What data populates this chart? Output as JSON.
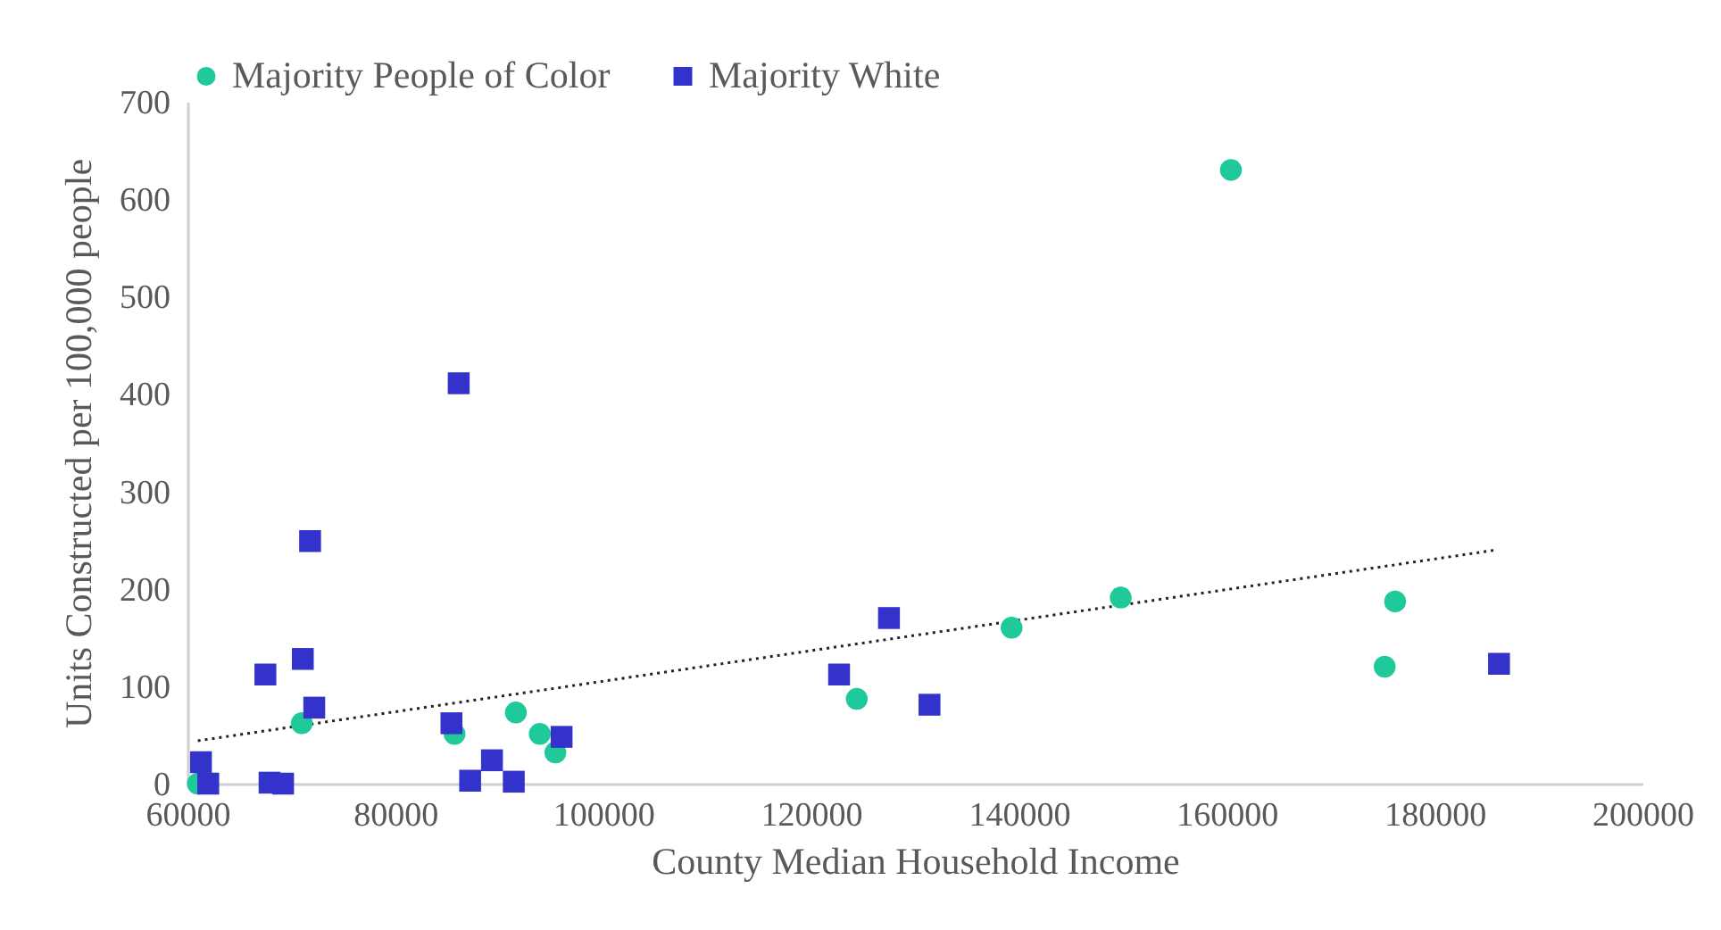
{
  "chart_data": {
    "type": "scatter",
    "xlabel": "County Median Household Income",
    "ylabel": "Units Constructed per 100,000 people",
    "xlim": [
      60000,
      200000
    ],
    "xticks": [
      60000,
      80000,
      100000,
      120000,
      140000,
      160000,
      180000,
      200000
    ],
    "ylim": [
      0,
      700
    ],
    "yticks": [
      0,
      100,
      200,
      300,
      400,
      500,
      600,
      700
    ],
    "grid": false,
    "legend": "top",
    "series": [
      {
        "name": "Majority People of Color",
        "color": "#1fc99a",
        "marker": "circle",
        "x": [
          61000,
          71000,
          85700,
          91600,
          93900,
          95400,
          124400,
          139300,
          149800,
          160400,
          175200,
          176200
        ],
        "values": [
          0,
          62,
          51,
          73,
          51,
          32,
          87,
          160,
          191,
          630,
          120,
          187
        ]
      },
      {
        "name": "Majority White",
        "color": "#3333cc",
        "marker": "square",
        "x": [
          61300,
          62000,
          67500,
          67900,
          69200,
          71100,
          71800,
          72200,
          85400,
          86100,
          87200,
          89300,
          91400,
          96000,
          122700,
          127500,
          131400,
          186200
        ],
        "values": [
          22,
          0,
          112,
          1,
          0,
          128,
          249,
          78,
          62,
          411,
          3,
          24,
          2,
          48,
          112,
          170,
          81,
          123
        ]
      },
      {
        "type": "line",
        "color": "#222222",
        "line_style": "dotted",
        "marker": "none",
        "x": [
          61000,
          186000
        ],
        "values": [
          44,
          240
        ]
      }
    ]
  }
}
